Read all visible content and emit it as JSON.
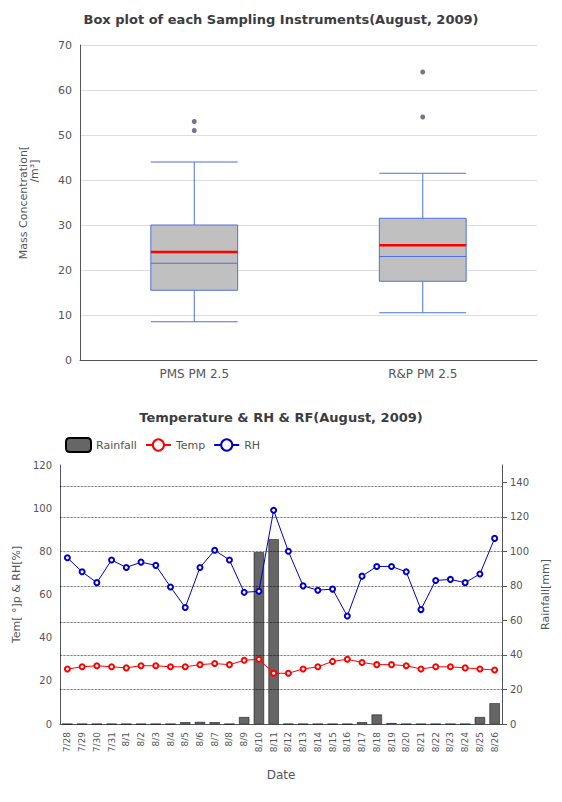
{
  "chart_data": [
    {
      "type": "box",
      "title": "Box plot of each Sampling Instruments(August, 2009)",
      "categories": [
        "PMS PM 2.5",
        "R&P PM 2.5"
      ],
      "ylabel": "Mass Concentration[\n                  /m³]",
      "ylim": [
        0,
        70
      ],
      "yticks": [
        0,
        10,
        20,
        30,
        40,
        50,
        60,
        70
      ],
      "series": [
        {
          "type": "boxplot",
          "color": "#C0C0C0",
          "values": [
            {
              "whisker_low": 8.5,
              "q1": 15.5,
              "median": 21.5,
              "q3": 30.0,
              "whisker_high": 44.0
            },
            {
              "whisker_low": 10.5,
              "q1": 17.5,
              "median": 23.0,
              "q3": 31.5,
              "whisker_high": 41.5
            }
          ]
        },
        {
          "type": "mean",
          "color": "#FF0000",
          "values": [
            24.0,
            25.5
          ]
        },
        {
          "type": "scatter",
          "marker": "circle",
          "values": [
            [
              51.0,
              53.0
            ],
            [
              54.0,
              64.0
            ]
          ]
        }
      ]
    },
    {
      "type": "combo",
      "title": "Temperature & RH & RF(August, 2009)",
      "categories": [
        "7/28",
        "7/29",
        "7/30",
        "7/31",
        "8/1",
        "8/2",
        "8/3",
        "8/4",
        "8/5",
        "8/6",
        "8/7",
        "8/8",
        "8/9",
        "8/10",
        "8/11",
        "8/12",
        "8/13",
        "8/14",
        "8/15",
        "8/16",
        "8/17",
        "8/18",
        "8/19",
        "8/20",
        "8/21",
        "8/22",
        "8/23",
        "8/24",
        "8/25",
        "8/26"
      ],
      "xlabel": "Date",
      "ylabel": "Tem[ °]p & RH[%]",
      "y2label": "Rainfall[mm]",
      "ylim": [
        0,
        120
      ],
      "yticks": [
        0,
        20,
        40,
        60,
        80,
        100,
        120
      ],
      "y2lim": [
        0,
        150
      ],
      "y2ticks": [
        0,
        20,
        40,
        60,
        80,
        100,
        120,
        140
      ],
      "hlines": [
        16,
        32,
        47,
        64,
        80,
        96,
        110
      ],
      "legend": "upper left",
      "series": [
        {
          "name": "Rainfall",
          "type": "bar",
          "axis": "y2",
          "color": "#666666",
          "values": [
            0,
            0,
            0,
            0,
            0,
            0,
            0,
            0,
            1.0,
            1.2,
            1.0,
            0,
            4.0,
            99.5,
            107.0,
            0,
            0,
            0,
            0,
            0,
            1.0,
            5.5,
            0.5,
            0,
            0,
            0,
            0,
            0,
            4.0,
            12.0
          ]
        },
        {
          "name": "Temp",
          "type": "line",
          "color": "#FF0000",
          "marker": "emptyCircle",
          "values": [
            25.5,
            26.5,
            27.0,
            26.5,
            26.0,
            27.0,
            27.0,
            26.5,
            26.5,
            27.5,
            28.0,
            27.5,
            29.5,
            30.0,
            23.5,
            23.5,
            25.5,
            26.5,
            29.0,
            30.0,
            28.5,
            27.5,
            27.5,
            27.0,
            25.5,
            26.5,
            26.5,
            26.0,
            25.5,
            25.0
          ]
        },
        {
          "name": "RH",
          "type": "line",
          "color": "#0000CC",
          "marker": "emptyCircle",
          "values": [
            77.0,
            70.5,
            65.5,
            76.0,
            72.5,
            75.0,
            73.5,
            63.5,
            54.0,
            72.5,
            80.5,
            76.0,
            61.0,
            61.5,
            99.0,
            80.0,
            64.0,
            62.0,
            62.5,
            50.0,
            68.5,
            73.0,
            73.0,
            70.5,
            53.0,
            66.5,
            67.0,
            65.5,
            69.5,
            86.0
          ]
        }
      ]
    }
  ]
}
